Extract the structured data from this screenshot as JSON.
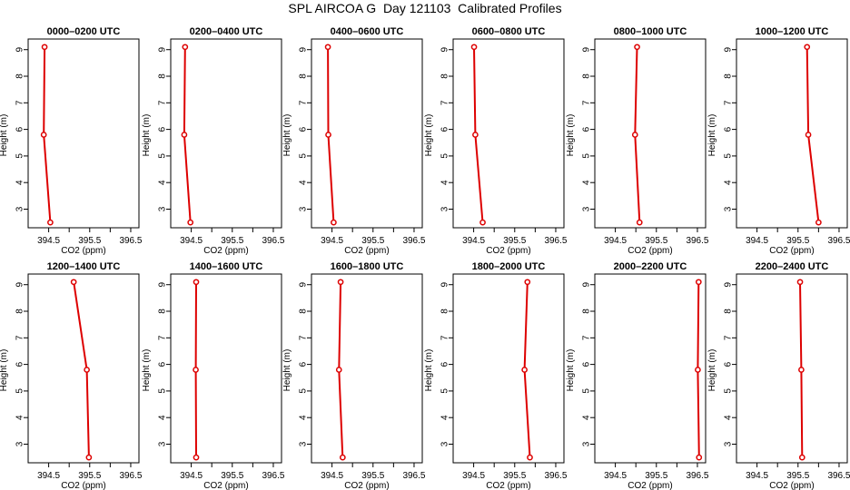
{
  "page": {
    "title": "SPL AIRCOA G  Day 121103  Calibrated Profiles"
  },
  "chart_data": [
    {
      "type": "line",
      "title": "0000–0200 UTC",
      "xlabel": "CO2 (ppm)",
      "ylabel": "Height (m)",
      "xlim": [
        394.0,
        396.7
      ],
      "ylim": [
        2.3,
        9.4
      ],
      "xticks": [
        "394.5",
        "395.5",
        "396.5"
      ],
      "yticks": [
        "3",
        "4",
        "5",
        "6",
        "7",
        "8",
        "9"
      ],
      "series": [
        {
          "x": [
            394.4,
            394.38,
            394.54
          ],
          "y": [
            9.1,
            5.8,
            2.5
          ],
          "color": "#dd0000"
        }
      ]
    },
    {
      "type": "line",
      "title": "0200–0400 UTC",
      "xlabel": "CO2 (ppm)",
      "ylabel": "Height (m)",
      "xlim": [
        394.0,
        396.7
      ],
      "ylim": [
        2.3,
        9.4
      ],
      "xticks": [
        "394.5",
        "395.5",
        "396.5"
      ],
      "yticks": [
        "3",
        "4",
        "5",
        "6",
        "7",
        "8",
        "9"
      ],
      "series": [
        {
          "x": [
            394.35,
            394.33,
            394.48
          ],
          "y": [
            9.1,
            5.8,
            2.5
          ],
          "color": "#dd0000"
        }
      ]
    },
    {
      "type": "line",
      "title": "0400–0600 UTC",
      "xlabel": "CO2 (ppm)",
      "ylabel": "Height (m)",
      "xlim": [
        394.0,
        396.7
      ],
      "ylim": [
        2.3,
        9.4
      ],
      "xticks": [
        "394.5",
        "395.5",
        "396.5"
      ],
      "yticks": [
        "3",
        "4",
        "5",
        "6",
        "7",
        "8",
        "9"
      ],
      "series": [
        {
          "x": [
            394.4,
            394.41,
            394.54
          ],
          "y": [
            9.1,
            5.8,
            2.5
          ],
          "color": "#dd0000"
        }
      ]
    },
    {
      "type": "line",
      "title": "0600–0800 UTC",
      "xlabel": "CO2 (ppm)",
      "ylabel": "Height (m)",
      "xlim": [
        394.0,
        396.7
      ],
      "ylim": [
        2.3,
        9.4
      ],
      "xticks": [
        "394.5",
        "395.5",
        "396.5"
      ],
      "yticks": [
        "3",
        "4",
        "5",
        "6",
        "7",
        "8",
        "9"
      ],
      "series": [
        {
          "x": [
            394.51,
            394.54,
            394.72
          ],
          "y": [
            9.1,
            5.8,
            2.5
          ],
          "color": "#dd0000"
        }
      ]
    },
    {
      "type": "line",
      "title": "0800–1000 UTC",
      "xlabel": "CO2 (ppm)",
      "ylabel": "Height (m)",
      "xlim": [
        394.0,
        396.7
      ],
      "ylim": [
        2.3,
        9.4
      ],
      "xticks": [
        "394.5",
        "395.5",
        "396.5"
      ],
      "yticks": [
        "3",
        "4",
        "5",
        "6",
        "7",
        "8",
        "9"
      ],
      "series": [
        {
          "x": [
            395.03,
            394.98,
            395.09
          ],
          "y": [
            9.1,
            5.8,
            2.5
          ],
          "color": "#dd0000"
        }
      ]
    },
    {
      "type": "line",
      "title": "1000–1200 UTC",
      "xlabel": "CO2 (ppm)",
      "ylabel": "Height (m)",
      "xlim": [
        394.0,
        396.7
      ],
      "ylim": [
        2.3,
        9.4
      ],
      "xticks": [
        "394.5",
        "395.5",
        "396.5"
      ],
      "yticks": [
        "3",
        "4",
        "5",
        "6",
        "7",
        "8",
        "9"
      ],
      "series": [
        {
          "x": [
            395.72,
            395.75,
            396.0
          ],
          "y": [
            9.1,
            5.8,
            2.5
          ],
          "color": "#dd0000"
        }
      ]
    },
    {
      "type": "line",
      "title": "1200–1400 UTC",
      "xlabel": "CO2 (ppm)",
      "ylabel": "Height (m)",
      "xlim": [
        394.0,
        396.7
      ],
      "ylim": [
        2.3,
        9.4
      ],
      "xticks": [
        "394.5",
        "395.5",
        "396.5"
      ],
      "yticks": [
        "3",
        "4",
        "5",
        "6",
        "7",
        "8",
        "9"
      ],
      "series": [
        {
          "x": [
            395.11,
            395.43,
            395.48
          ],
          "y": [
            9.1,
            5.8,
            2.5
          ],
          "color": "#dd0000"
        }
      ]
    },
    {
      "type": "line",
      "title": "1400–1600 UTC",
      "xlabel": "CO2 (ppm)",
      "ylabel": "Height (m)",
      "xlim": [
        394.0,
        396.7
      ],
      "ylim": [
        2.3,
        9.4
      ],
      "xticks": [
        "394.5",
        "395.5",
        "396.5"
      ],
      "yticks": [
        "3",
        "4",
        "5",
        "6",
        "7",
        "8",
        "9"
      ],
      "series": [
        {
          "x": [
            394.62,
            394.61,
            394.62
          ],
          "y": [
            9.1,
            5.8,
            2.5
          ],
          "color": "#dd0000"
        }
      ]
    },
    {
      "type": "line",
      "title": "1600–1800 UTC",
      "xlabel": "CO2 (ppm)",
      "ylabel": "Height (m)",
      "xlim": [
        394.0,
        396.7
      ],
      "ylim": [
        2.3,
        9.4
      ],
      "xticks": [
        "394.5",
        "395.5",
        "396.5"
      ],
      "yticks": [
        "3",
        "4",
        "5",
        "6",
        "7",
        "8",
        "9"
      ],
      "series": [
        {
          "x": [
            394.71,
            394.67,
            394.76
          ],
          "y": [
            9.1,
            5.8,
            2.5
          ],
          "color": "#dd0000"
        }
      ]
    },
    {
      "type": "line",
      "title": "1800–2000 UTC",
      "xlabel": "CO2 (ppm)",
      "ylabel": "Height (m)",
      "xlim": [
        394.0,
        396.7
      ],
      "ylim": [
        2.3,
        9.4
      ],
      "xticks": [
        "394.5",
        "395.5",
        "396.5"
      ],
      "yticks": [
        "3",
        "4",
        "5",
        "6",
        "7",
        "8",
        "9"
      ],
      "series": [
        {
          "x": [
            395.81,
            395.74,
            395.87
          ],
          "y": [
            9.1,
            5.8,
            2.5
          ],
          "color": "#dd0000"
        }
      ]
    },
    {
      "type": "line",
      "title": "2000–2200 UTC",
      "xlabel": "CO2 (ppm)",
      "ylabel": "Height (m)",
      "xlim": [
        394.0,
        396.7
      ],
      "ylim": [
        2.3,
        9.4
      ],
      "xticks": [
        "394.5",
        "395.5",
        "396.5"
      ],
      "yticks": [
        "3",
        "4",
        "5",
        "6",
        "7",
        "8",
        "9"
      ],
      "series": [
        {
          "x": [
            396.53,
            396.51,
            396.54
          ],
          "y": [
            9.1,
            5.8,
            2.5
          ],
          "color": "#dd0000"
        }
      ]
    },
    {
      "type": "line",
      "title": "2200–2400 UTC",
      "xlabel": "CO2 (ppm)",
      "ylabel": "Height (m)",
      "xlim": [
        394.0,
        396.7
      ],
      "ylim": [
        2.3,
        9.4
      ],
      "xticks": [
        "394.5",
        "395.5",
        "396.5"
      ],
      "yticks": [
        "3",
        "4",
        "5",
        "6",
        "7",
        "8",
        "9"
      ],
      "series": [
        {
          "x": [
            395.55,
            395.58,
            395.6
          ],
          "y": [
            9.1,
            5.8,
            2.5
          ],
          "color": "#dd0000"
        }
      ]
    }
  ]
}
